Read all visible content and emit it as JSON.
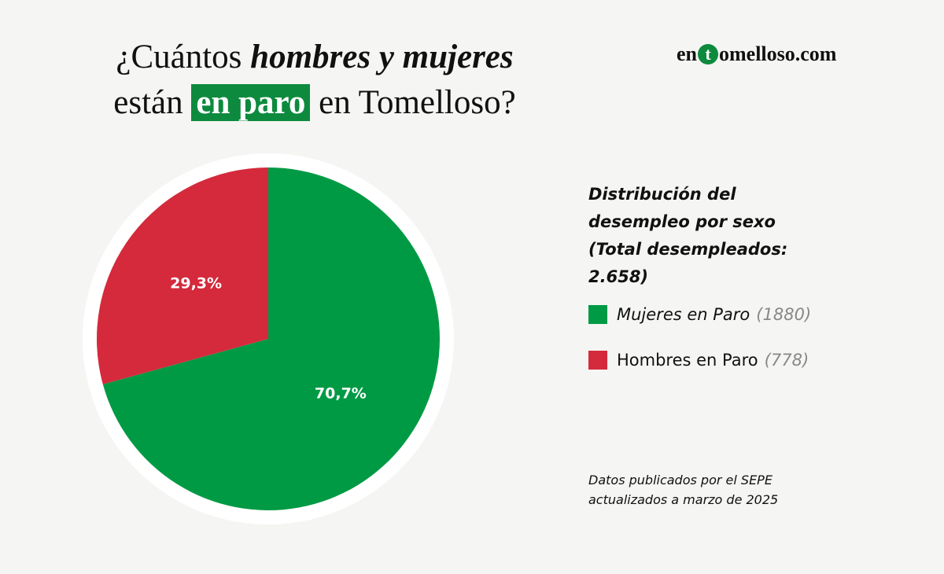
{
  "title": {
    "line1_prefix": "¿Cuántos ",
    "line1_emphasis": "hombres y mujeres",
    "line2_prefix": "están ",
    "line2_highlight": "en paro",
    "line2_suffix": " en Tomelloso?"
  },
  "logo": {
    "prefix": "en",
    "letter": "t",
    "suffix": "omelloso.com"
  },
  "legend": {
    "title_lines": [
      "Distribución del",
      "desempleo por sexo",
      "(Total desempleados:",
      "2.658)"
    ],
    "items": [
      {
        "name": "Mujeres en Paro",
        "count": "1880"
      },
      {
        "name": "Hombres en Paro",
        "count": "778"
      }
    ]
  },
  "source": {
    "lines": [
      "Datos publicados por el SEPE",
      "actualizados a marzo de 2025"
    ]
  },
  "colors": {
    "mujeres": "#009a44",
    "hombres": "#d42a3c",
    "accent": "#0d8a3e",
    "pie_ring": "#ffffff"
  },
  "chart_data": {
    "type": "pie",
    "title": "",
    "slices": [
      {
        "label": "Mujeres en Paro",
        "value": 1880,
        "percent_label": "70,7%",
        "color": "#009a44"
      },
      {
        "label": "Hombres en Paro",
        "value": 778,
        "percent_label": "29,3%",
        "color": "#d42a3c"
      }
    ],
    "total": 2658,
    "legend_position": "right"
  }
}
